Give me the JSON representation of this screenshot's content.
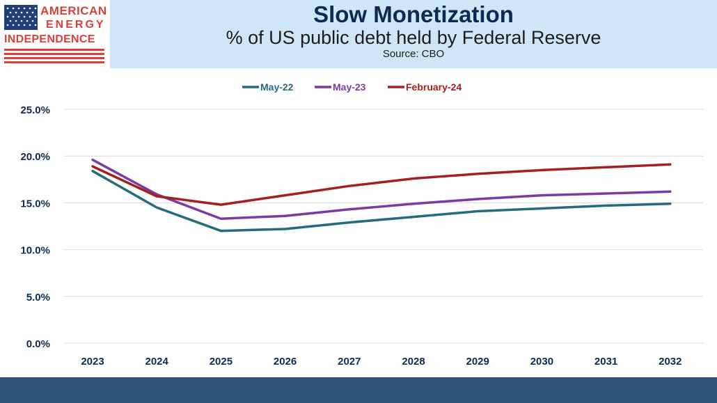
{
  "logo": {
    "line1": "AMERICAN",
    "line2": "ENERGY",
    "line3": "INDEPENDENCE"
  },
  "header": {
    "title": "Slow Monetization",
    "subtitle": "% of US public debt held by Federal Reserve",
    "source": "Source: CBO"
  },
  "colors": {
    "header_bg": "#cfe6f7",
    "title": "#0d2a52",
    "footer": "#2c5278",
    "logo_red": "#d9413a",
    "logo_blue": "#1f3e7a"
  },
  "chart_data": {
    "type": "line",
    "title": "",
    "xlabel": "",
    "ylabel": "",
    "x": [
      "2023",
      "2024",
      "2025",
      "2026",
      "2027",
      "2028",
      "2029",
      "2030",
      "2031",
      "2032"
    ],
    "ylim": [
      0,
      25
    ],
    "yticks": [
      "0.0%",
      "5.0%",
      "10.0%",
      "15.0%",
      "20.0%",
      "25.0%"
    ],
    "grid": true,
    "legend_position": "top-center",
    "series": [
      {
        "name": "May-22",
        "color": "#236b7d",
        "values": [
          18.4,
          14.5,
          12.0,
          12.2,
          12.9,
          13.5,
          14.1,
          14.4,
          14.7,
          14.9
        ]
      },
      {
        "name": "May-23",
        "color": "#7e3aa3",
        "values": [
          19.6,
          15.9,
          13.3,
          13.6,
          14.3,
          14.9,
          15.4,
          15.8,
          16.0,
          16.2
        ]
      },
      {
        "name": "February-24",
        "color": "#a51f1f",
        "values": [
          18.9,
          15.7,
          14.8,
          15.8,
          16.8,
          17.6,
          18.1,
          18.5,
          18.8,
          19.1
        ]
      }
    ]
  }
}
